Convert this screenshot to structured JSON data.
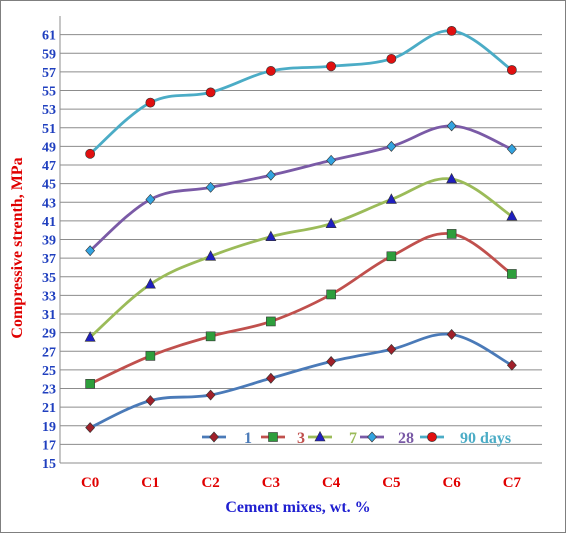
{
  "chart_data": {
    "type": "line",
    "title": "",
    "xlabel": "Cement mixes, wt. %",
    "ylabel": "Compressive strenth, MPa",
    "categories": [
      "C0",
      "C1",
      "C2",
      "C3",
      "C4",
      "C5",
      "C6",
      "C7"
    ],
    "ylim": [
      15,
      63
    ],
    "yticks": [
      15,
      17,
      19,
      21,
      23,
      25,
      27,
      29,
      31,
      33,
      35,
      37,
      39,
      41,
      43,
      45,
      47,
      49,
      51,
      53,
      55,
      57,
      59,
      61
    ],
    "grid": true,
    "legend_position": "bottom-right",
    "series": [
      {
        "name": "1",
        "values": [
          18.8,
          21.7,
          22.3,
          24.1,
          25.9,
          27.2,
          28.8,
          25.5
        ],
        "color": "#4a7ab8",
        "marker": "diamond",
        "marker_color": "#a0202a"
      },
      {
        "name": "3",
        "values": [
          23.5,
          26.5,
          28.6,
          30.2,
          33.1,
          37.2,
          39.6,
          35.3
        ],
        "color": "#c0504d",
        "marker": "square",
        "marker_color": "#2e9e3c"
      },
      {
        "name": "7",
        "values": [
          28.5,
          34.2,
          37.2,
          39.3,
          40.7,
          43.3,
          45.5,
          41.5
        ],
        "color": "#9bbb59",
        "marker": "triangle",
        "marker_color": "#1f1fbf"
      },
      {
        "name": "28",
        "values": [
          37.8,
          43.3,
          44.6,
          45.9,
          47.5,
          49.0,
          51.2,
          48.7
        ],
        "color": "#7a5aa6",
        "marker": "diamond",
        "marker_color": "#33a3e0"
      },
      {
        "name": "90 days",
        "values": [
          48.2,
          53.7,
          54.8,
          57.1,
          57.6,
          58.4,
          61.4,
          57.2
        ],
        "color": "#4bacc6",
        "marker": "circle",
        "marker_color": "#e01010"
      }
    ]
  }
}
